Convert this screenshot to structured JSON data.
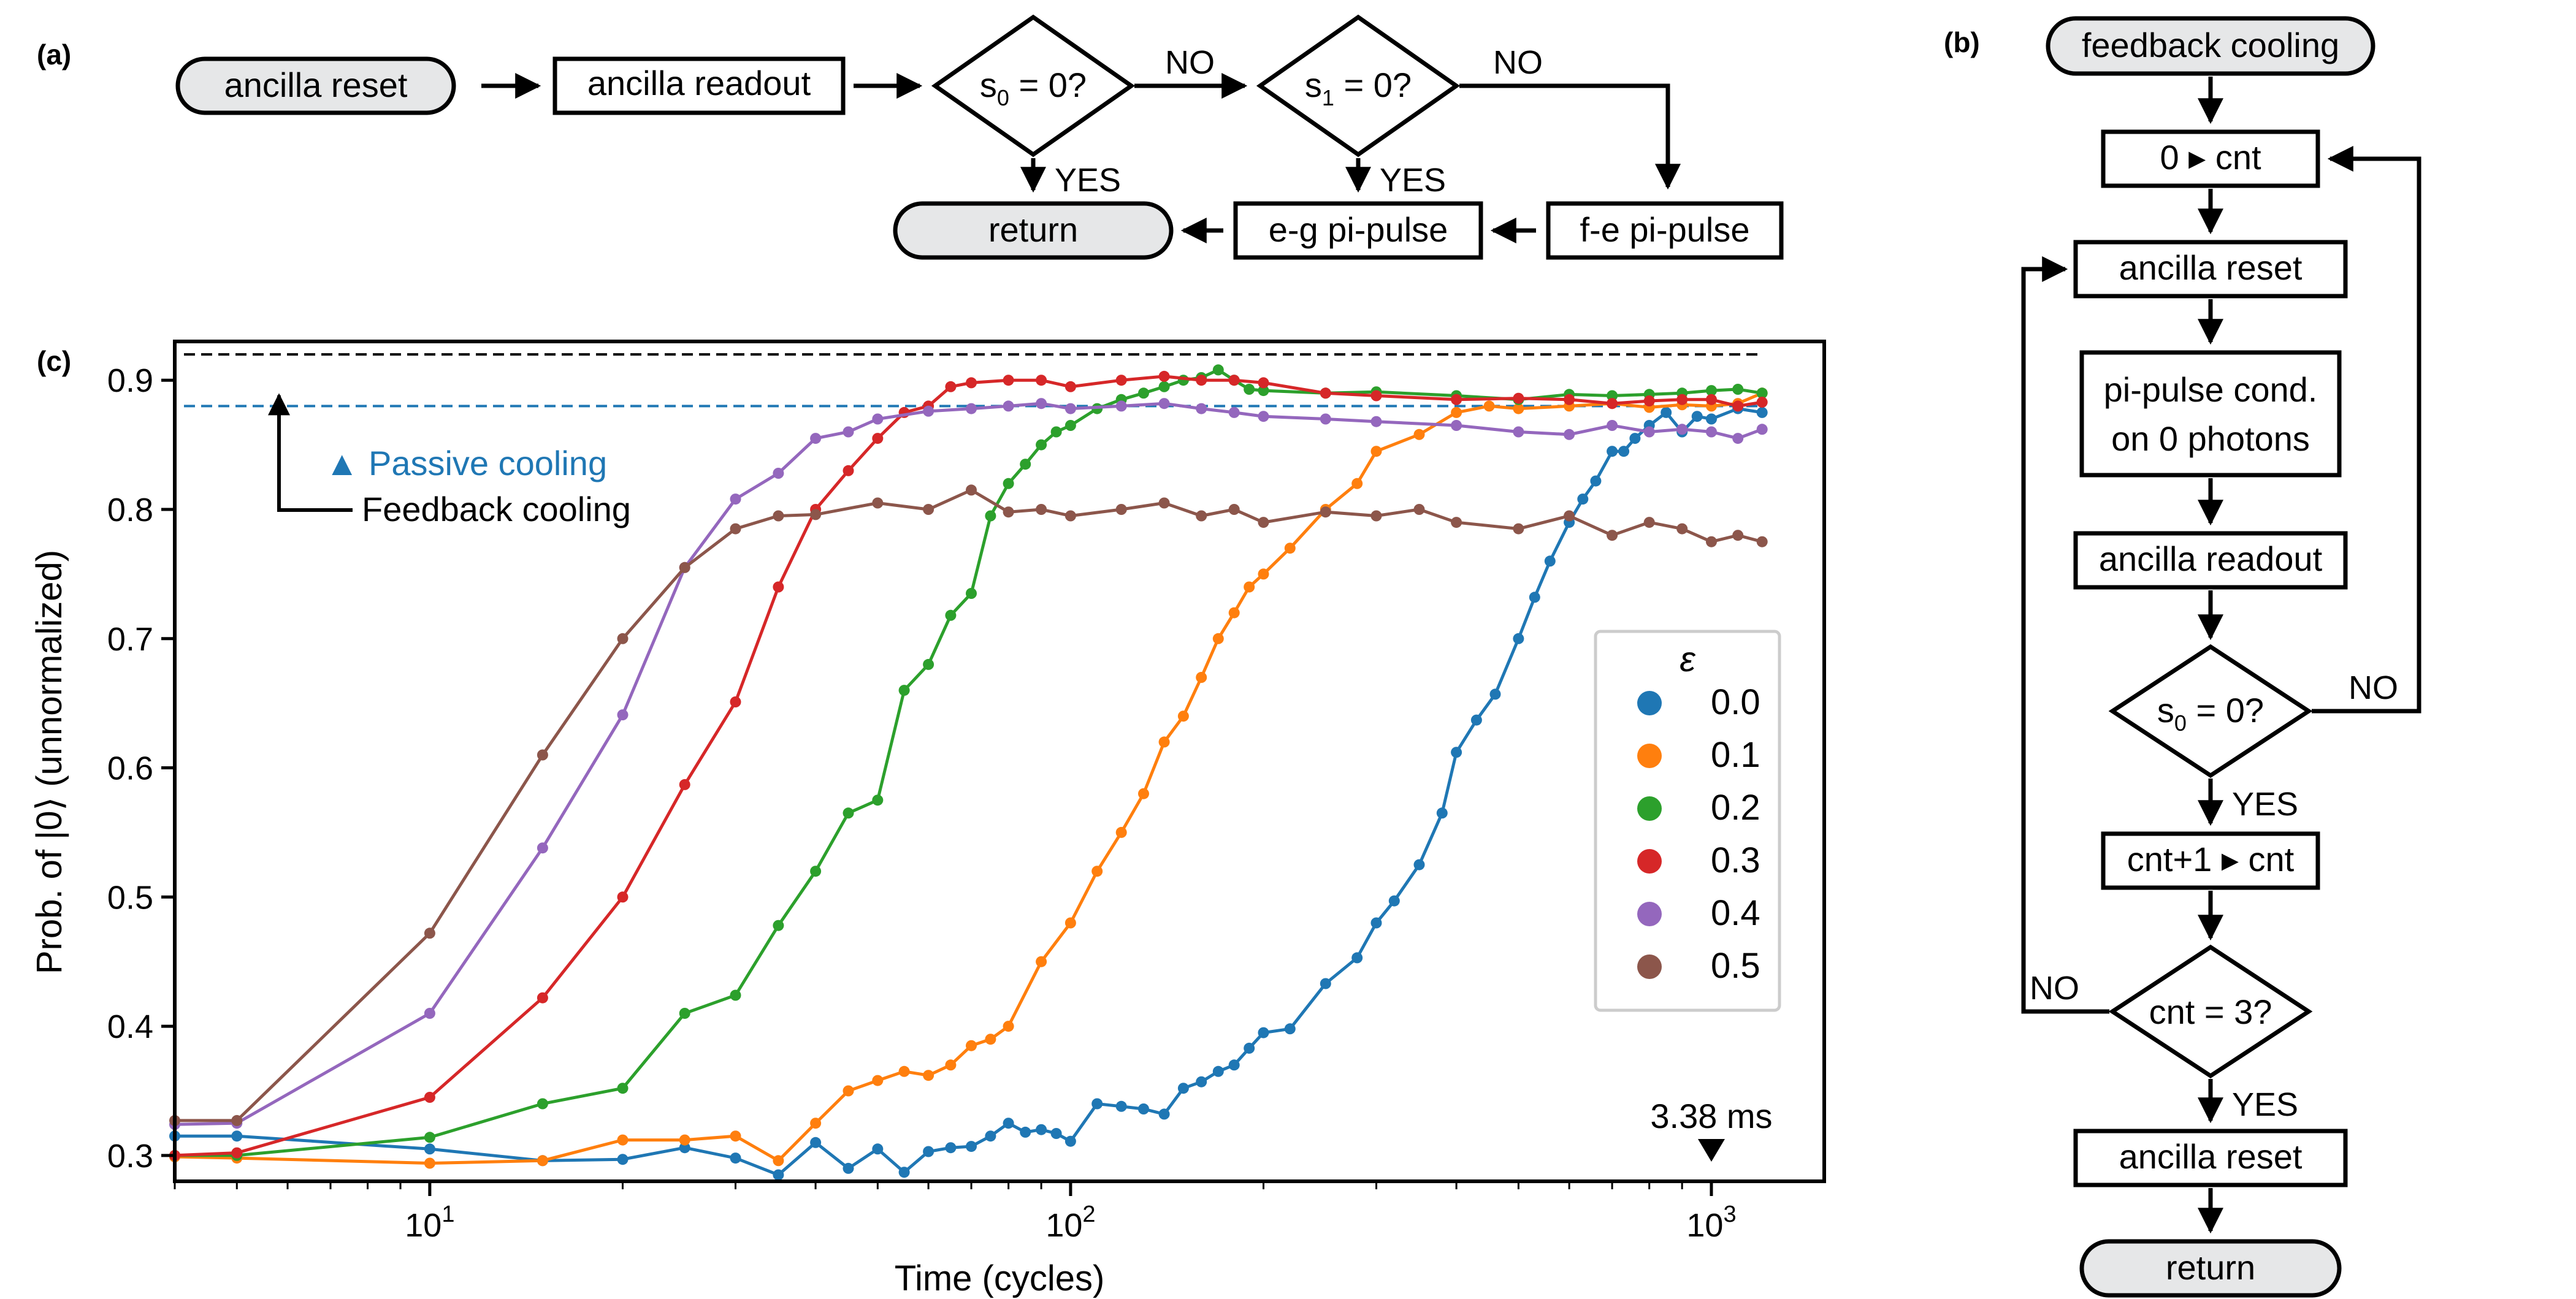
{
  "panels": {
    "a": "(a)",
    "b": "(b)",
    "c": "(c)"
  },
  "flow_a": {
    "reset": "ancilla reset",
    "readout": "ancilla readout",
    "s0_main": "s",
    "s0_sub": "0",
    "s0_rest": " = 0?",
    "s1_main": "s",
    "s1_sub": "1",
    "s1_rest": " = 0?",
    "no1": "NO",
    "no2": "NO",
    "yes1": "YES",
    "yes2": "YES",
    "return": "return",
    "eg": "e-g pi-pulse",
    "fe": "f-e pi-pulse"
  },
  "flow_b": {
    "start": "feedback cooling",
    "init": "0 ▸ cnt",
    "reset": "ancilla reset",
    "cond_line1": "pi-pulse cond.",
    "cond_line2": "on 0 photons",
    "readout": "ancilla readout",
    "s0_main": "s",
    "s0_sub": "0",
    "s0_rest": " = 0?",
    "no1": "NO",
    "yes1": "YES",
    "incr": "cnt+1 ▸ cnt",
    "check": "cnt = 3?",
    "no2": "NO",
    "yes2": "YES",
    "reset2": "ancilla reset",
    "return": "return"
  },
  "annotations": {
    "passive": "▲ Passive cooling",
    "feedback": "Feedback cooling",
    "marker": "3.38 ms"
  },
  "colors": {
    "passive": "#1f77b4",
    "feedback": "#000000",
    "node_fill": "#e6e7e8"
  },
  "chart_data": {
    "type": "line",
    "xscale": "log",
    "xlabel": "Time (cycles)",
    "ylabel": "Prob. of |0⟩ (unnormalized)",
    "xlim": [
      4,
      1500
    ],
    "ylim": [
      0.28,
      0.93
    ],
    "xticks": [
      {
        "value": 10,
        "base": "10",
        "exp": "1"
      },
      {
        "value": 100,
        "base": "10",
        "exp": "2"
      },
      {
        "value": 1000,
        "base": "10",
        "exp": "3"
      }
    ],
    "yticks": [
      {
        "value": 0.3,
        "label": "0.3"
      },
      {
        "value": 0.4,
        "label": "0.4"
      },
      {
        "value": 0.5,
        "label": "0.5"
      },
      {
        "value": 0.6,
        "label": "0.6"
      },
      {
        "value": 0.7,
        "label": "0.7"
      },
      {
        "value": 0.8,
        "label": "0.8"
      },
      {
        "value": 0.9,
        "label": "0.9"
      }
    ],
    "hlines": [
      {
        "y": 0.92,
        "color": "#000000"
      },
      {
        "y": 0.88,
        "color": "#1f77b4"
      }
    ],
    "marker_x": 1000,
    "legend_title": "ε",
    "legend_position": "right",
    "series": [
      {
        "name": "0.0",
        "color": "#1f77b4",
        "x": [
          4,
          5,
          10,
          15,
          20,
          25,
          30,
          35,
          40,
          45,
          50,
          55,
          60,
          65,
          70,
          75,
          80,
          85,
          90,
          95,
          100,
          110,
          120,
          130,
          140,
          150,
          160,
          170,
          180,
          190,
          200,
          220,
          250,
          280,
          300,
          320,
          350,
          380,
          400,
          430,
          460,
          500,
          530,
          560,
          600,
          630,
          660,
          700,
          730,
          760,
          800,
          850,
          900,
          950,
          1000,
          1100,
          1200
        ],
        "y": [
          0.315,
          0.315,
          0.305,
          0.296,
          0.297,
          0.306,
          0.298,
          0.285,
          0.31,
          0.29,
          0.305,
          0.287,
          0.303,
          0.306,
          0.307,
          0.315,
          0.325,
          0.318,
          0.32,
          0.317,
          0.311,
          0.34,
          0.338,
          0.336,
          0.332,
          0.352,
          0.357,
          0.365,
          0.37,
          0.383,
          0.395,
          0.398,
          0.433,
          0.453,
          0.48,
          0.497,
          0.525,
          0.565,
          0.612,
          0.637,
          0.657,
          0.7,
          0.732,
          0.76,
          0.79,
          0.808,
          0.822,
          0.845,
          0.845,
          0.855,
          0.865,
          0.875,
          0.86,
          0.872,
          0.87,
          0.878,
          0.875
        ]
      },
      {
        "name": "0.1",
        "color": "#ff7f0e",
        "x": [
          4,
          5,
          10,
          15,
          20,
          25,
          30,
          35,
          40,
          45,
          50,
          55,
          60,
          65,
          70,
          75,
          80,
          90,
          100,
          110,
          120,
          130,
          140,
          150,
          160,
          170,
          180,
          190,
          200,
          220,
          250,
          280,
          300,
          350,
          400,
          450,
          500,
          600,
          700,
          800,
          900,
          1000,
          1100,
          1200
        ],
        "y": [
          0.299,
          0.298,
          0.294,
          0.296,
          0.312,
          0.312,
          0.315,
          0.296,
          0.325,
          0.35,
          0.358,
          0.365,
          0.362,
          0.37,
          0.385,
          0.39,
          0.4,
          0.45,
          0.48,
          0.52,
          0.55,
          0.58,
          0.62,
          0.64,
          0.67,
          0.7,
          0.72,
          0.74,
          0.75,
          0.77,
          0.8,
          0.82,
          0.845,
          0.858,
          0.875,
          0.88,
          0.878,
          0.88,
          0.882,
          0.879,
          0.881,
          0.88,
          0.882,
          0.89
        ]
      },
      {
        "name": "0.2",
        "color": "#2ca02c",
        "x": [
          4,
          5,
          10,
          15,
          20,
          25,
          30,
          35,
          40,
          45,
          50,
          55,
          60,
          65,
          70,
          75,
          80,
          85,
          90,
          95,
          100,
          110,
          120,
          130,
          140,
          150,
          160,
          170,
          180,
          190,
          200,
          250,
          300,
          400,
          500,
          600,
          700,
          800,
          900,
          1000,
          1100,
          1200
        ],
        "y": [
          0.3,
          0.3,
          0.314,
          0.34,
          0.352,
          0.41,
          0.424,
          0.478,
          0.52,
          0.565,
          0.575,
          0.66,
          0.68,
          0.718,
          0.735,
          0.795,
          0.82,
          0.835,
          0.85,
          0.86,
          0.865,
          0.878,
          0.885,
          0.89,
          0.895,
          0.9,
          0.902,
          0.908,
          0.9,
          0.893,
          0.892,
          0.89,
          0.891,
          0.888,
          0.885,
          0.889,
          0.888,
          0.889,
          0.89,
          0.892,
          0.893,
          0.89
        ]
      },
      {
        "name": "0.3",
        "color": "#d62728",
        "x": [
          4,
          5,
          10,
          15,
          20,
          25,
          30,
          35,
          40,
          45,
          50,
          55,
          60,
          65,
          70,
          80,
          90,
          100,
          120,
          140,
          160,
          180,
          200,
          250,
          300,
          400,
          500,
          600,
          700,
          800,
          900,
          1000,
          1100,
          1200
        ],
        "y": [
          0.3,
          0.302,
          0.345,
          0.422,
          0.5,
          0.587,
          0.651,
          0.74,
          0.8,
          0.83,
          0.855,
          0.875,
          0.88,
          0.895,
          0.898,
          0.9,
          0.9,
          0.895,
          0.9,
          0.903,
          0.9,
          0.9,
          0.898,
          0.89,
          0.888,
          0.885,
          0.886,
          0.885,
          0.882,
          0.884,
          0.885,
          0.885,
          0.88,
          0.883
        ]
      },
      {
        "name": "0.4",
        "color": "#9467bd",
        "x": [
          4,
          5,
          10,
          15,
          20,
          25,
          30,
          35,
          40,
          45,
          50,
          60,
          70,
          80,
          90,
          100,
          120,
          140,
          160,
          180,
          200,
          250,
          300,
          400,
          500,
          600,
          700,
          800,
          900,
          1000,
          1100,
          1200
        ],
        "y": [
          0.324,
          0.325,
          0.41,
          0.538,
          0.641,
          0.755,
          0.808,
          0.828,
          0.855,
          0.86,
          0.87,
          0.876,
          0.878,
          0.88,
          0.882,
          0.878,
          0.88,
          0.882,
          0.878,
          0.875,
          0.872,
          0.87,
          0.868,
          0.865,
          0.86,
          0.858,
          0.865,
          0.86,
          0.862,
          0.86,
          0.855,
          0.862
        ]
      },
      {
        "name": "0.5",
        "color": "#8c564b",
        "x": [
          4,
          5,
          10,
          15,
          20,
          25,
          30,
          35,
          40,
          50,
          60,
          70,
          80,
          90,
          100,
          120,
          140,
          160,
          180,
          200,
          250,
          300,
          350,
          400,
          500,
          600,
          700,
          800,
          900,
          1000,
          1100,
          1200
        ],
        "y": [
          0.327,
          0.327,
          0.472,
          0.61,
          0.7,
          0.755,
          0.785,
          0.795,
          0.796,
          0.805,
          0.8,
          0.815,
          0.798,
          0.8,
          0.795,
          0.8,
          0.805,
          0.795,
          0.8,
          0.79,
          0.798,
          0.795,
          0.8,
          0.79,
          0.785,
          0.795,
          0.78,
          0.79,
          0.785,
          0.775,
          0.78,
          0.775
        ]
      }
    ]
  }
}
